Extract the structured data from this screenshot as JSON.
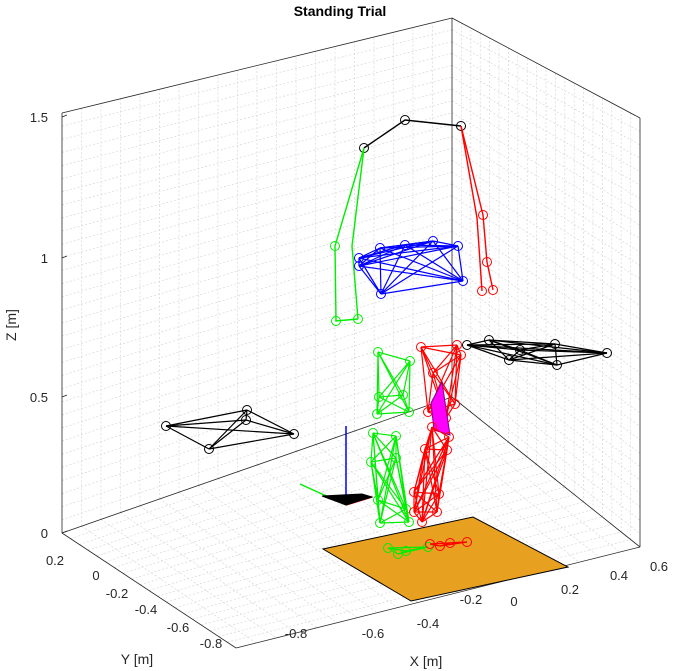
{
  "chart_data": {
    "type": "scatter",
    "title": "Standing Trial",
    "xlabel": "X [m]",
    "ylabel": "Y [m]",
    "zlabel": "Z [m]",
    "projection": "3d",
    "grid": true,
    "x_ticks": [
      "-0.8",
      "-0.6",
      "-0.4",
      "-0.2",
      "0",
      "0.2",
      "0.4",
      "0.6"
    ],
    "y_ticks": [
      "0.2",
      "0",
      "-0.2",
      "-0.4",
      "-0.6",
      "-0.8"
    ],
    "z_ticks": [
      "0",
      "0.5",
      "1",
      "1.5"
    ],
    "colors": {
      "left_segments": "#00ee00",
      "right_segments": "#ff0000",
      "trunk_and_head": "#0000ff",
      "arms_and_shoulders": "#000000",
      "force_plate": "#e8a020",
      "pelvis_marker": "#ff00ff"
    },
    "series": [
      {
        "name": "",
        "color": "#000000",
        "points": [
          [
            -0.25,
            0.05,
            1.46
          ],
          [
            0.05,
            0.02,
            1.53
          ]
        ]
      },
      {
        "name": "",
        "color": "#ff0000",
        "points": [
          [
            0.05,
            0.02,
            1.53
          ],
          [
            0.12,
            0.05,
            1.1
          ],
          [
            0.08,
            0.05,
            0.95
          ]
        ]
      },
      {
        "name": "",
        "color": "#00ee00",
        "points": [
          [
            -0.25,
            0.05,
            1.46
          ],
          [
            -0.38,
            0.0,
            0.95
          ],
          [
            -0.4,
            -0.05,
            0.72
          ]
        ]
      },
      {
        "name": "",
        "color": "#0000ff",
        "points": [
          [
            -0.35,
            0.0,
            1.05
          ],
          [
            0.05,
            0.0,
            1.05
          ],
          [
            -0.2,
            -0.05,
            0.88
          ],
          [
            0.05,
            -0.05,
            0.98
          ]
        ]
      },
      {
        "name": "",
        "color": "#00ee00",
        "points": [
          [
            -0.25,
            -0.05,
            0.62
          ],
          [
            -0.2,
            -0.1,
            0.45
          ],
          [
            -0.28,
            -0.15,
            0.3
          ],
          [
            -0.3,
            -0.2,
            0.18
          ]
        ]
      },
      {
        "name": "",
        "color": "#ff0000",
        "points": [
          [
            -0.05,
            -0.1,
            0.62
          ],
          [
            -0.05,
            -0.15,
            0.45
          ],
          [
            -0.1,
            -0.2,
            0.3
          ],
          [
            -0.12,
            -0.25,
            0.18
          ]
        ]
      },
      {
        "name": "",
        "color": "#000000",
        "points": [
          [
            0.3,
            0.2,
            0.72
          ],
          [
            0.55,
            0.15,
            0.7
          ],
          [
            0.2,
            0.15,
            0.74
          ]
        ]
      },
      {
        "name": "",
        "color": "#000000",
        "points": [
          [
            -0.85,
            0.0,
            0.42
          ],
          [
            -0.55,
            -0.05,
            0.4
          ],
          [
            -0.75,
            -0.05,
            0.38
          ]
        ]
      }
    ]
  }
}
